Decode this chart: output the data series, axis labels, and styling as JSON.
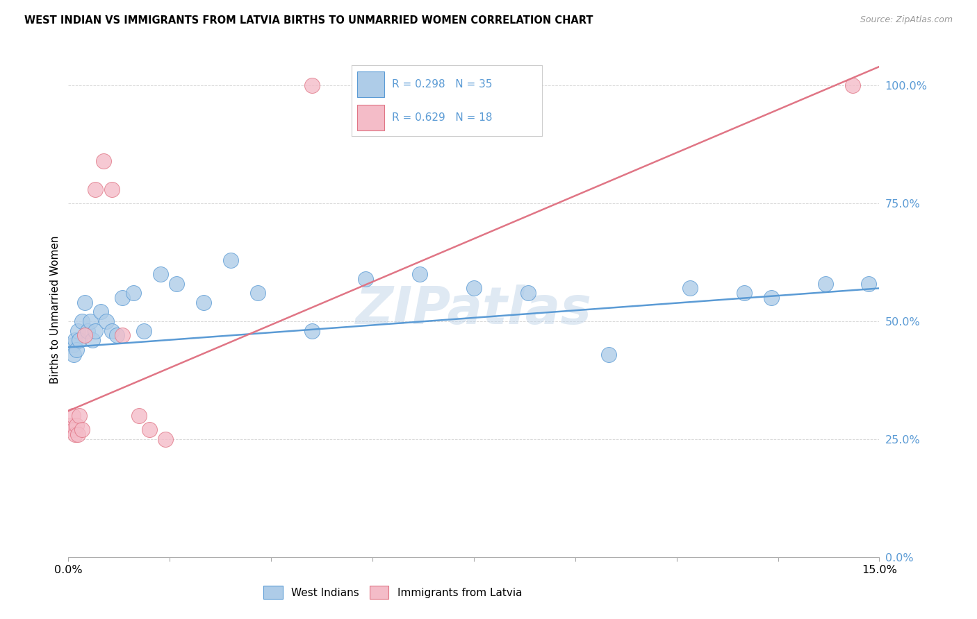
{
  "title": "WEST INDIAN VS IMMIGRANTS FROM LATVIA BIRTHS TO UNMARRIED WOMEN CORRELATION CHART",
  "source": "Source: ZipAtlas.com",
  "ylabel": "Births to Unmarried Women",
  "yticks": [
    0.0,
    25.0,
    50.0,
    75.0,
    100.0
  ],
  "ytick_labels": [
    "0.0%",
    "25.0%",
    "50.0%",
    "75.0%",
    "100.0%"
  ],
  "xticks": [
    0.0,
    1.875,
    3.75,
    5.625,
    7.5,
    9.375,
    11.25,
    13.125,
    15.0
  ],
  "xmin": 0.0,
  "xmax": 15.0,
  "ymin": 0.0,
  "ymax": 105.0,
  "legend1_R": "R = 0.298",
  "legend1_N": "N = 35",
  "legend2_R": "R = 0.629",
  "legend2_N": "N = 18",
  "blue_fill": "#aecce8",
  "pink_fill": "#f4bcc8",
  "blue_edge": "#5b9bd5",
  "pink_edge": "#e07585",
  "blue_line": "#5b9bd5",
  "pink_line": "#e07585",
  "grid_color": "#d8d8d8",
  "watermark": "ZIPatlas",
  "blue_x": [
    0.08,
    0.1,
    0.12,
    0.15,
    0.18,
    0.2,
    0.25,
    0.3,
    0.35,
    0.4,
    0.45,
    0.5,
    0.6,
    0.7,
    0.8,
    0.9,
    1.0,
    1.2,
    1.4,
    1.7,
    2.0,
    2.5,
    3.0,
    3.5,
    4.5,
    5.5,
    6.5,
    7.5,
    8.5,
    10.0,
    11.5,
    12.5,
    13.0,
    14.0,
    14.8
  ],
  "blue_y": [
    45,
    43,
    46,
    44,
    48,
    46,
    50,
    54,
    48,
    50,
    46,
    48,
    52,
    50,
    48,
    47,
    55,
    56,
    48,
    60,
    58,
    54,
    63,
    56,
    48,
    59,
    60,
    57,
    56,
    43,
    57,
    56,
    55,
    58,
    58
  ],
  "pink_x": [
    0.05,
    0.08,
    0.1,
    0.12,
    0.15,
    0.18,
    0.2,
    0.25,
    0.3,
    0.5,
    0.65,
    0.8,
    1.0,
    1.3,
    1.5,
    1.8,
    4.5,
    14.5
  ],
  "pink_y": [
    28,
    30,
    27,
    26,
    28,
    26,
    30,
    27,
    47,
    78,
    84,
    78,
    47,
    30,
    27,
    25,
    100,
    100
  ],
  "blue_trend_x": [
    0.0,
    15.0
  ],
  "blue_trend_y": [
    44.5,
    57.0
  ],
  "pink_trend_x": [
    0.0,
    15.0
  ],
  "pink_trend_y": [
    31.0,
    104.0
  ]
}
